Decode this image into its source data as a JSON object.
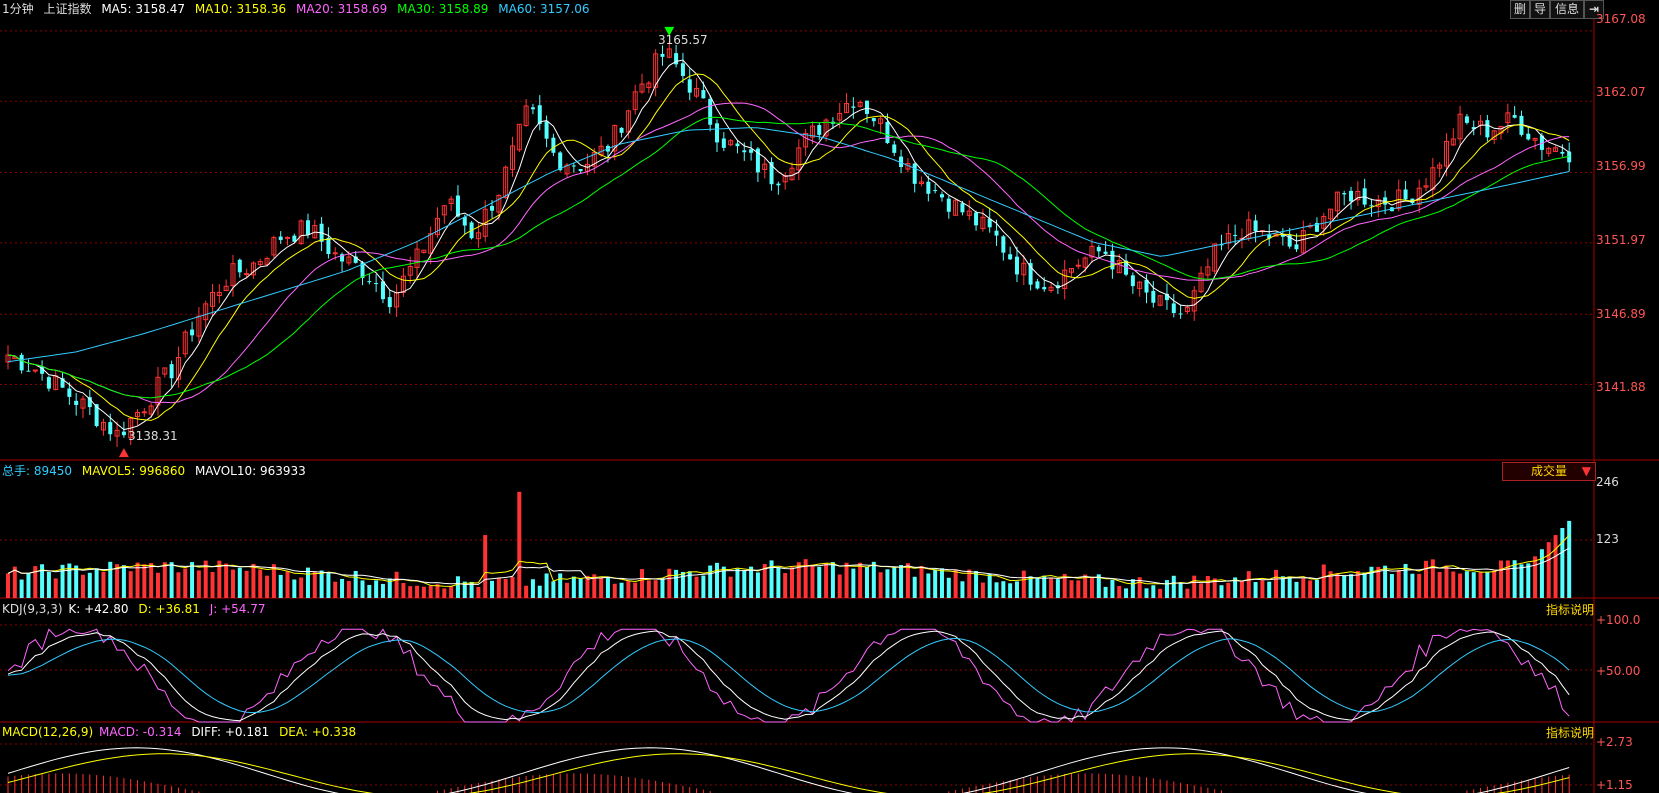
{
  "header": {
    "period": "1分钟",
    "name": "上证指数",
    "ma5": "MA5: 3158.47",
    "ma10": "MA10: 3158.36",
    "ma20": "MA20: 3158.69",
    "ma30": "MA30: 3158.89",
    "ma60": "MA60: 3157.06"
  },
  "toolbar": {
    "del": "删",
    "guide": "导",
    "info": "信息",
    "exit_icon": "exit-icon"
  },
  "price_axis": [
    "3167.08",
    "3162.07",
    "3156.99",
    "3151.97",
    "3146.89",
    "3141.88"
  ],
  "annotations": {
    "high": "3165.57",
    "low": "3138.31"
  },
  "volume": {
    "title": "总手: 89450",
    "mavol5": "MAVOL5: 996860",
    "mavol10": "MAVOL10: 963933",
    "selector": "成交量",
    "axis": [
      "246",
      "123"
    ]
  },
  "kdj": {
    "title": "KDJ(9,3,3)",
    "k": "K: +42.80",
    "d": "D: +36.81",
    "j": "J: +54.77",
    "help": "指标说明",
    "axis": [
      "+100.0",
      "+50.00"
    ]
  },
  "macd": {
    "title": "MACD(12,26,9)",
    "macd": "MACD: -0.314",
    "diff": "DIFF: +0.181",
    "dea": "DEA: +0.338",
    "help": "指标说明",
    "axis": [
      "+2.73",
      "+1.15"
    ]
  },
  "colors": {
    "up": "#ff3333",
    "down": "#55ffff",
    "ma5": "#ffffff",
    "ma10": "#ffff00",
    "ma20": "#ff66ff",
    "ma30": "#00ff00",
    "ma60": "#33ccff",
    "grid": "#8b0000"
  },
  "chart_data": {
    "type": "candlestick",
    "title": "上证指数 1分钟",
    "price_range": [
      3136.5,
      3168
    ],
    "y_ticks": [
      3141.88,
      3146.89,
      3151.97,
      3156.99,
      3162.07,
      3167.08
    ],
    "close_samples": [
      3144.0,
      3143.0,
      3141.5,
      3140.0,
      3138.31,
      3140.5,
      3143.0,
      3147.0,
      3149.5,
      3150.5,
      3152.5,
      3153.0,
      3151.0,
      3150.0,
      3148.0,
      3151.0,
      3155.0,
      3152.5,
      3156.0,
      3161.5,
      3158.0,
      3157.5,
      3159.0,
      3163.0,
      3165.57,
      3163.0,
      3159.5,
      3158.0,
      3156.5,
      3159.0,
      3161.0,
      3162.5,
      3160.0,
      3157.0,
      3155.5,
      3154.0,
      3152.5,
      3150.0,
      3149.0,
      3150.5,
      3151.5,
      3149.0,
      3147.5,
      3146.8,
      3151.0,
      3153.0,
      3152.5,
      3151.5,
      3154.0,
      3155.5,
      3155.0,
      3155.0,
      3157.0,
      3160.5,
      3160.0,
      3160.8,
      3159.0,
      3158.47
    ],
    "ma60_samples": [
      3143.5,
      3144.2,
      3145.5,
      3147.0,
      3148.5,
      3150.0,
      3152.0,
      3154.5,
      3157.0,
      3159.0,
      3160.0,
      3160.2,
      3159.5,
      3158.0,
      3156.0,
      3154.0,
      3152.0,
      3151.0,
      3152.0,
      3153.0,
      3154.0,
      3155.0,
      3156.0,
      3157.06
    ],
    "volume_range": [
      0,
      300
    ],
    "kdj_range": [
      0,
      110
    ],
    "macd_range": [
      0,
      3.2
    ]
  }
}
